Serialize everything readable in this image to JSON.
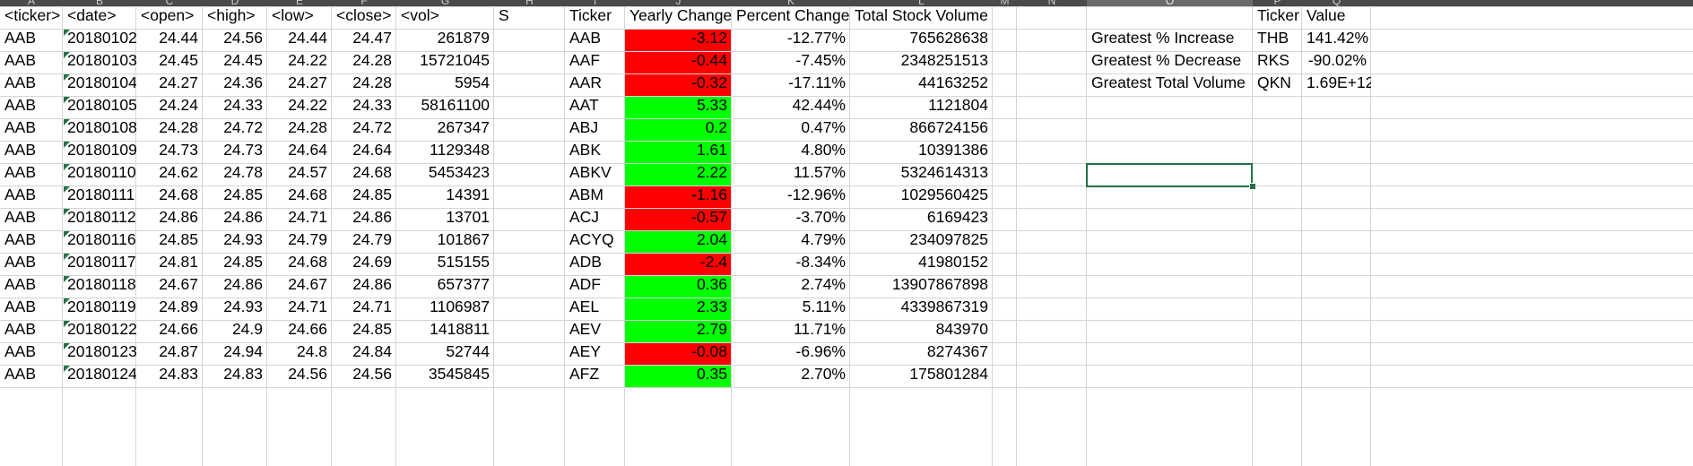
{
  "column_letters": [
    "A",
    "B",
    "C",
    "D",
    "E",
    "F",
    "G",
    "H",
    "I",
    "J",
    "K",
    "L",
    "M",
    "N",
    "O",
    "P",
    "Q"
  ],
  "headers": {
    "ticker": "<ticker>",
    "date": "<date>",
    "open": "<open>",
    "high": "<high>",
    "low": "<low>",
    "close": "<close>",
    "vol": "<vol>",
    "h_col": "S",
    "summary_ticker": "Ticker",
    "yearly_change": "Yearly Change",
    "percent_change": "Percent Change",
    "total_volume": "Total Stock Volume",
    "bonus_ticker": "Ticker",
    "bonus_value": "Value"
  },
  "raw_rows": [
    [
      "AAB",
      "20180102",
      "24.44",
      "24.56",
      "24.44",
      "24.47",
      "261879"
    ],
    [
      "AAB",
      "20180103",
      "24.45",
      "24.45",
      "24.22",
      "24.28",
      "15721045"
    ],
    [
      "AAB",
      "20180104",
      "24.27",
      "24.36",
      "24.27",
      "24.28",
      "5954"
    ],
    [
      "AAB",
      "20180105",
      "24.24",
      "24.33",
      "24.22",
      "24.33",
      "58161100"
    ],
    [
      "AAB",
      "20180108",
      "24.28",
      "24.72",
      "24.28",
      "24.72",
      "267347"
    ],
    [
      "AAB",
      "20180109",
      "24.73",
      "24.73",
      "24.64",
      "24.64",
      "1129348"
    ],
    [
      "AAB",
      "20180110",
      "24.62",
      "24.78",
      "24.57",
      "24.68",
      "5453423"
    ],
    [
      "AAB",
      "20180111",
      "24.68",
      "24.85",
      "24.68",
      "24.85",
      "14391"
    ],
    [
      "AAB",
      "20180112",
      "24.86",
      "24.86",
      "24.71",
      "24.86",
      "13701"
    ],
    [
      "AAB",
      "20180116",
      "24.85",
      "24.93",
      "24.79",
      "24.79",
      "101867"
    ],
    [
      "AAB",
      "20180117",
      "24.81",
      "24.85",
      "24.68",
      "24.69",
      "515155"
    ],
    [
      "AAB",
      "20180118",
      "24.67",
      "24.86",
      "24.67",
      "24.86",
      "657377"
    ],
    [
      "AAB",
      "20180119",
      "24.89",
      "24.93",
      "24.71",
      "24.71",
      "1106987"
    ],
    [
      "AAB",
      "20180122",
      "24.66",
      "24.9",
      "24.66",
      "24.85",
      "1418811"
    ],
    [
      "AAB",
      "20180123",
      "24.87",
      "24.94",
      "24.8",
      "24.84",
      "52744"
    ],
    [
      "AAB",
      "20180124",
      "24.83",
      "24.83",
      "24.56",
      "24.56",
      "3545845"
    ]
  ],
  "summary_rows": [
    {
      "ticker": "AAB",
      "change": "-3.12",
      "pct": "-12.77%",
      "volume": "765628638",
      "status": "negative"
    },
    {
      "ticker": "AAF",
      "change": "-0.44",
      "pct": "-7.45%",
      "volume": "2348251513",
      "status": "negative"
    },
    {
      "ticker": "AAR",
      "change": "-0.32",
      "pct": "-17.11%",
      "volume": "44163252",
      "status": "negative"
    },
    {
      "ticker": "AAT",
      "change": "5.33",
      "pct": "42.44%",
      "volume": "1121804",
      "status": "positive"
    },
    {
      "ticker": "ABJ",
      "change": "0.2",
      "pct": "0.47%",
      "volume": "866724156",
      "status": "positive"
    },
    {
      "ticker": "ABK",
      "change": "1.61",
      "pct": "4.80%",
      "volume": "10391386",
      "status": "positive"
    },
    {
      "ticker": "ABKV",
      "change": "2.22",
      "pct": "11.57%",
      "volume": "5324614313",
      "status": "positive"
    },
    {
      "ticker": "ABM",
      "change": "-1.16",
      "pct": "-12.96%",
      "volume": "1029560425",
      "status": "negative"
    },
    {
      "ticker": "ACJ",
      "change": "-0.57",
      "pct": "-3.70%",
      "volume": "6169423",
      "status": "negative"
    },
    {
      "ticker": "ACYQ",
      "change": "2.04",
      "pct": "4.79%",
      "volume": "234097825",
      "status": "positive"
    },
    {
      "ticker": "ADB",
      "change": "-2.4",
      "pct": "-8.34%",
      "volume": "41980152",
      "status": "negative"
    },
    {
      "ticker": "ADF",
      "change": "0.36",
      "pct": "2.74%",
      "volume": "13907867898",
      "status": "positive"
    },
    {
      "ticker": "AEL",
      "change": "2.33",
      "pct": "5.11%",
      "volume": "4339867319",
      "status": "positive"
    },
    {
      "ticker": "AEV",
      "change": "2.79",
      "pct": "11.71%",
      "volume": "843970",
      "status": "positive"
    },
    {
      "ticker": "AEY",
      "change": "-0.08",
      "pct": "-6.96%",
      "volume": "8274367",
      "status": "negative"
    },
    {
      "ticker": "AFZ",
      "change": "0.35",
      "pct": "2.70%",
      "volume": "175801284",
      "status": "positive"
    }
  ],
  "bonus_rows": [
    {
      "label": "Greatest % Increase",
      "ticker": "THB",
      "value": "141.42%"
    },
    {
      "label": "Greatest % Decrease",
      "ticker": "RKS",
      "value": "-90.02%"
    },
    {
      "label": "Greatest Total Volume",
      "ticker": "QKN",
      "value": "1.69E+12"
    }
  ],
  "colors": {
    "negative_fill": "#ff0000",
    "positive_fill": "#00ff00",
    "gridline": "#d4d4d4",
    "selection": "#217346"
  }
}
